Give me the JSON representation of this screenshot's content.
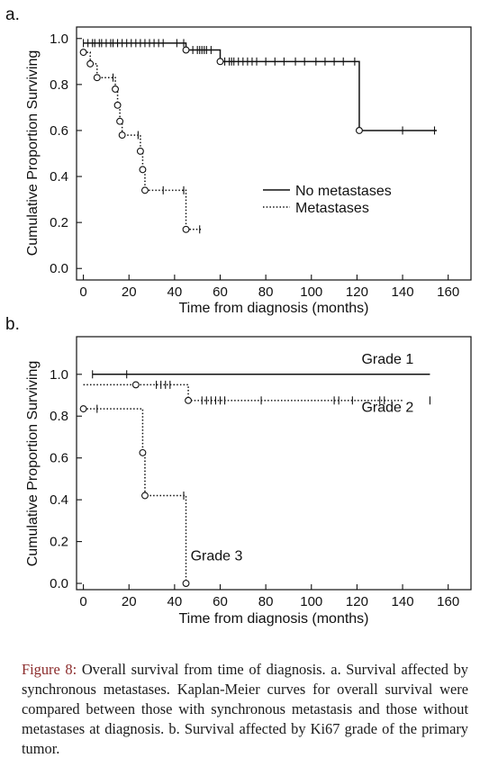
{
  "chart_data": [
    {
      "type": "line",
      "panel": "a.",
      "xlabel": "Time from diagnosis (months)",
      "ylabel": "Cumulative Proportion Surviving",
      "xlim": [
        -3,
        170
      ],
      "ylim": [
        -0.05,
        1.05
      ],
      "xticks": [
        0,
        20,
        40,
        60,
        80,
        100,
        120,
        140,
        160
      ],
      "yticks": [
        0.0,
        0.2,
        0.4,
        0.6,
        0.8,
        1.0
      ],
      "legend_position": "center-right",
      "series": [
        {
          "name": "No metastases",
          "style": "solid",
          "steps": [
            [
              0,
              0.98
            ],
            [
              45,
              0.95
            ],
            [
              60,
              0.9
            ],
            [
              121,
              0.6
            ],
            [
              155,
              0.6
            ]
          ],
          "events": [
            [
              45,
              0.95
            ],
            [
              60,
              0.9
            ],
            [
              121,
              0.6
            ]
          ],
          "censored": [
            [
              0,
              0.98
            ],
            [
              2,
              0.98
            ],
            [
              4,
              0.98
            ],
            [
              5,
              0.98
            ],
            [
              7,
              0.98
            ],
            [
              8,
              0.98
            ],
            [
              10,
              0.98
            ],
            [
              12,
              0.98
            ],
            [
              13,
              0.98
            ],
            [
              15,
              0.98
            ],
            [
              17,
              0.98
            ],
            [
              19,
              0.98
            ],
            [
              21,
              0.98
            ],
            [
              23,
              0.98
            ],
            [
              25,
              0.98
            ],
            [
              27,
              0.98
            ],
            [
              29,
              0.98
            ],
            [
              31,
              0.98
            ],
            [
              33,
              0.98
            ],
            [
              35,
              0.98
            ],
            [
              41,
              0.98
            ],
            [
              44,
              0.98
            ],
            [
              48,
              0.95
            ],
            [
              50,
              0.95
            ],
            [
              51,
              0.95
            ],
            [
              52,
              0.95
            ],
            [
              53,
              0.95
            ],
            [
              54,
              0.95
            ],
            [
              56,
              0.95
            ],
            [
              62,
              0.9
            ],
            [
              64,
              0.9
            ],
            [
              65,
              0.9
            ],
            [
              66,
              0.9
            ],
            [
              68,
              0.9
            ],
            [
              70,
              0.9
            ],
            [
              72,
              0.9
            ],
            [
              74,
              0.9
            ],
            [
              76,
              0.9
            ],
            [
              80,
              0.9
            ],
            [
              84,
              0.9
            ],
            [
              88,
              0.9
            ],
            [
              93,
              0.9
            ],
            [
              97,
              0.9
            ],
            [
              102,
              0.9
            ],
            [
              106,
              0.9
            ],
            [
              110,
              0.9
            ],
            [
              114,
              0.9
            ],
            [
              119,
              0.9
            ],
            [
              140,
              0.6
            ],
            [
              154,
              0.6
            ]
          ]
        },
        {
          "name": "Metastases",
          "style": "dotted",
          "steps": [
            [
              0,
              0.94
            ],
            [
              3,
              0.89
            ],
            [
              6,
              0.83
            ],
            [
              14,
              0.78
            ],
            [
              15,
              0.71
            ],
            [
              16,
              0.64
            ],
            [
              17,
              0.58
            ],
            [
              25,
              0.51
            ],
            [
              26,
              0.43
            ],
            [
              27,
              0.34
            ],
            [
              45,
              0.17
            ],
            [
              52,
              0.17
            ]
          ],
          "events": [
            [
              0,
              0.94
            ],
            [
              3,
              0.89
            ],
            [
              6,
              0.83
            ],
            [
              14,
              0.78
            ],
            [
              15,
              0.71
            ],
            [
              16,
              0.64
            ],
            [
              17,
              0.58
            ],
            [
              25,
              0.51
            ],
            [
              26,
              0.43
            ],
            [
              27,
              0.34
            ],
            [
              45,
              0.17
            ]
          ],
          "censored": [
            [
              13,
              0.83
            ],
            [
              24,
              0.58
            ],
            [
              35,
              0.34
            ],
            [
              44,
              0.34
            ],
            [
              51,
              0.17
            ]
          ]
        }
      ]
    },
    {
      "type": "line",
      "panel": "b.",
      "xlabel": "Time from diagnosis (months)",
      "ylabel": "Cumulative Proportion Surviving",
      "xlim": [
        -3,
        170
      ],
      "ylim": [
        -0.03,
        1.18
      ],
      "xticks": [
        0,
        20,
        40,
        60,
        80,
        100,
        120,
        140,
        160
      ],
      "yticks": [
        0.0,
        0.2,
        0.4,
        0.6,
        0.8,
        1.0
      ],
      "series": [
        {
          "name": "Grade 1",
          "style": "solid",
          "label_at": [
            122,
            1.05
          ],
          "steps": [
            [
              4,
              1.0
            ],
            [
              152,
              1.0
            ]
          ],
          "events": [],
          "censored": [
            [
              4,
              1.0
            ],
            [
              19,
              1.0
            ]
          ]
        },
        {
          "name": "Grade 2",
          "style": "dotted",
          "label_at": [
            122,
            0.82
          ],
          "steps": [
            [
              0,
              0.95
            ],
            [
              23,
              0.95
            ],
            [
              46,
              0.875
            ],
            [
              140,
              0.875
            ]
          ],
          "events": [
            [
              23,
              0.95
            ],
            [
              46,
              0.875
            ]
          ],
          "censored": [
            [
              32,
              0.95
            ],
            [
              34,
              0.95
            ],
            [
              36,
              0.95
            ],
            [
              38,
              0.95
            ],
            [
              52,
              0.875
            ],
            [
              54,
              0.875
            ],
            [
              56,
              0.875
            ],
            [
              58,
              0.875
            ],
            [
              60,
              0.875
            ],
            [
              62,
              0.875
            ],
            [
              78,
              0.875
            ],
            [
              110,
              0.875
            ],
            [
              112,
              0.875
            ],
            [
              118,
              0.875
            ],
            [
              130,
              0.875
            ],
            [
              132,
              0.875
            ],
            [
              152,
              0.875
            ]
          ]
        },
        {
          "name": "Grade 3",
          "style": "dotted",
          "label_at": [
            47,
            0.11
          ],
          "steps": [
            [
              0,
              0.835
            ],
            [
              26,
              0.835
            ],
            [
              26,
              0.625
            ],
            [
              27,
              0.625
            ],
            [
              27,
              0.42
            ],
            [
              45,
              0.42
            ],
            [
              45,
              0.0
            ]
          ],
          "events": [
            [
              0,
              0.835
            ],
            [
              26,
              0.625
            ],
            [
              27,
              0.42
            ],
            [
              45,
              0.0
            ]
          ],
          "censored": [
            [
              6,
              0.835
            ],
            [
              44,
              0.42
            ]
          ]
        }
      ]
    }
  ],
  "caption": {
    "lead": "Figure 8:",
    "body": " Overall survival from time of diagnosis. a. Survival affected by synchronous metastases. Kaplan-Meier curves for overall survival were compared between those with synchronous metastasis and those without metastases at diagnosis. b. Survival affected by Ki67 grade of the primary tumor."
  }
}
